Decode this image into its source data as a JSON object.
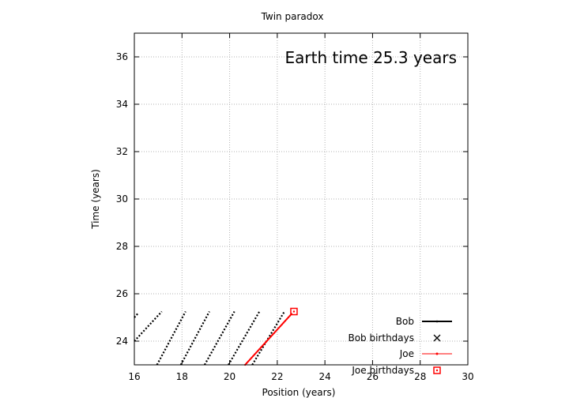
{
  "chart_data": {
    "type": "line",
    "title": "Twin paradox",
    "xlabel": "Position (years)",
    "ylabel": "Time (years)",
    "xlim": [
      16,
      30
    ],
    "ylim": [
      23,
      37
    ],
    "xticks": [
      "16",
      "18",
      "20",
      "22",
      "24",
      "26",
      "28",
      "30"
    ],
    "yticks": [
      "24",
      "26",
      "28",
      "30",
      "32",
      "34",
      "36"
    ],
    "grid": true,
    "legend_position": "bottom-right",
    "annotation": "Earth time 25.3 years",
    "series": [
      {
        "name": "Bob",
        "color": "#000000",
        "style": "dotted-lines",
        "segments": [
          {
            "x": [
              16.0,
              16.15
            ],
            "y": [
              25.0,
              25.17
            ]
          },
          {
            "x": [
              16.0,
              17.15
            ],
            "y": [
              24.0,
              25.25
            ]
          },
          {
            "x": [
              16.95,
              18.15
            ],
            "y": [
              23.0,
              25.25
            ]
          },
          {
            "x": [
              17.95,
              19.15
            ],
            "y": [
              23.0,
              25.25
            ]
          },
          {
            "x": [
              18.95,
              20.2
            ],
            "y": [
              23.0,
              25.25
            ]
          },
          {
            "x": [
              19.95,
              21.25
            ],
            "y": [
              23.0,
              25.25
            ]
          },
          {
            "x": [
              20.95,
              22.3
            ],
            "y": [
              23.0,
              25.25
            ]
          }
        ]
      },
      {
        "name": "Bob birthdays",
        "marker": "x",
        "color": "#000000",
        "points": []
      },
      {
        "name": "Joe",
        "color": "#ff0000",
        "style": "line-with-dots",
        "segments": [
          {
            "x": [
              20.65,
              22.6
            ],
            "y": [
              23.0,
              25.15
            ]
          }
        ]
      },
      {
        "name": "Joe birthdays",
        "marker": "square",
        "color": "#ff0000",
        "points": [
          {
            "x": 22.7,
            "y": 25.25
          }
        ]
      }
    ]
  }
}
